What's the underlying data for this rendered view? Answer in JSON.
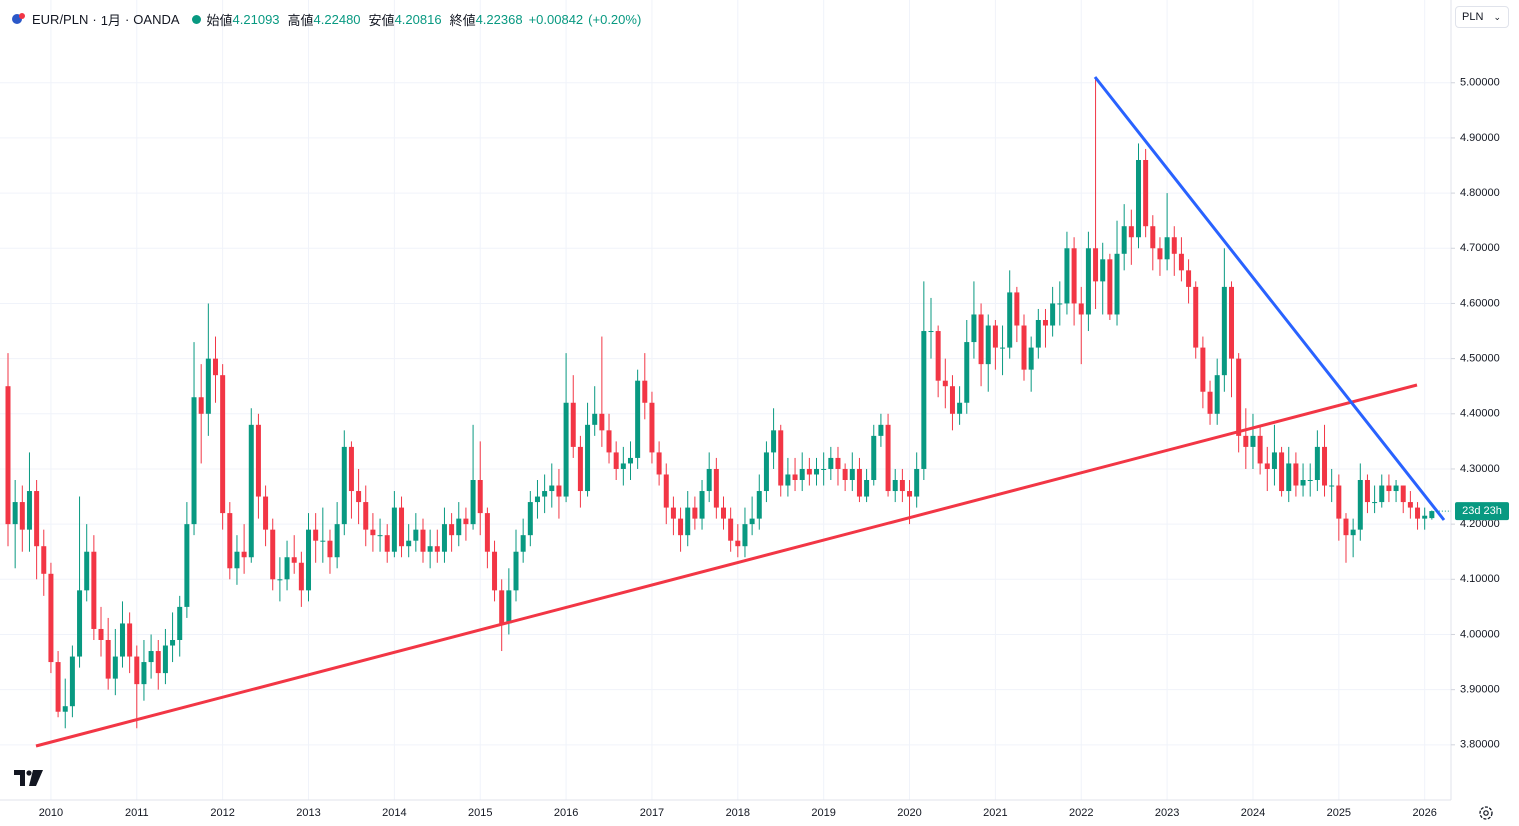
{
  "chart_data": {
    "type": "candlestick",
    "header": {
      "symbol": "EUR/PLN",
      "interval": "1月",
      "source": "OANDA",
      "open_label": "始値",
      "open": "4.21093",
      "high_label": "高値",
      "high": "4.22480",
      "low_label": "安値",
      "low": "4.20816",
      "close_label": "終値",
      "close": "4.22368",
      "change": "+0.00842",
      "change_percent": "(+0.20%)"
    },
    "currency": "PLN",
    "countdown": "23d 23h",
    "up_color": "#089981",
    "down_color": "#f23645",
    "grid": true,
    "ylim": [
      3.7,
      5.15
    ],
    "yticks": [
      {
        "value": 3.8,
        "label": "3.80000"
      },
      {
        "value": 3.9,
        "label": "3.90000"
      },
      {
        "value": 4.0,
        "label": "4.00000"
      },
      {
        "value": 4.1,
        "label": "4.10000"
      },
      {
        "value": 4.2,
        "label": "4.20000"
      },
      {
        "value": 4.3,
        "label": "4.30000"
      },
      {
        "value": 4.4,
        "label": "4.40000"
      },
      {
        "value": 4.5,
        "label": "4.50000"
      },
      {
        "value": 4.6,
        "label": "4.60000"
      },
      {
        "value": 4.7,
        "label": "4.70000"
      },
      {
        "value": 4.8,
        "label": "4.80000"
      },
      {
        "value": 4.9,
        "label": "4.90000"
      },
      {
        "value": 5.0,
        "label": "5.00000"
      }
    ],
    "categories": [
      null,
      null,
      null,
      null,
      null,
      null,
      "2010",
      null,
      null,
      null,
      null,
      null,
      null,
      null,
      null,
      null,
      null,
      null,
      "2011",
      null,
      null,
      null,
      null,
      null,
      null,
      null,
      null,
      null,
      null,
      null,
      "2012",
      null,
      null,
      null,
      null,
      null,
      null,
      null,
      null,
      null,
      null,
      null,
      "2013",
      null,
      null,
      null,
      null,
      null,
      null,
      null,
      null,
      null,
      null,
      null,
      "2014",
      null,
      null,
      null,
      null,
      null,
      null,
      null,
      null,
      null,
      null,
      null,
      "2015",
      null,
      null,
      null,
      null,
      null,
      null,
      null,
      null,
      null,
      null,
      null,
      "2016",
      null,
      null,
      null,
      null,
      null,
      null,
      null,
      null,
      null,
      null,
      null,
      "2017",
      null,
      null,
      null,
      null,
      null,
      null,
      null,
      null,
      null,
      null,
      null,
      "2018",
      null,
      null,
      null,
      null,
      null,
      null,
      null,
      null,
      null,
      null,
      null,
      "2019",
      null,
      null,
      null,
      null,
      null,
      null,
      null,
      null,
      null,
      null,
      null,
      "2020",
      null,
      null,
      null,
      null,
      null,
      null,
      null,
      null,
      null,
      null,
      null,
      "2021",
      null,
      null,
      null,
      null,
      null,
      null,
      null,
      null,
      null,
      null,
      null,
      "2022",
      null,
      null,
      null,
      null,
      null,
      null,
      null,
      null,
      null,
      null,
      null,
      "2023",
      null,
      null,
      null,
      null,
      null,
      null,
      null,
      null,
      null,
      null,
      null,
      "2024",
      null,
      null,
      null,
      null,
      null,
      null,
      null,
      null,
      null,
      null,
      null,
      "2025",
      null,
      null,
      null,
      null,
      null,
      null,
      null,
      null,
      null,
      null,
      null,
      "2026",
      null
    ],
    "series": [
      {
        "open": [
          4.45,
          4.2,
          4.24,
          4.19,
          4.26,
          4.16,
          4.11,
          3.95,
          3.86,
          3.87,
          3.96,
          4.08,
          4.15,
          4.01,
          3.99,
          3.92,
          3.96,
          4.02,
          3.96,
          3.91,
          3.95,
          3.97,
          3.93,
          3.98,
          3.99,
          4.05,
          4.2,
          4.43,
          4.4,
          4.5,
          4.47,
          4.22,
          4.12,
          4.15,
          4.14,
          4.38,
          4.25,
          4.19,
          4.1,
          4.1,
          4.14,
          4.13,
          4.08,
          4.19,
          4.17,
          4.17,
          4.14,
          4.2,
          4.34,
          4.26,
          4.24,
          4.19,
          4.18,
          4.18,
          4.15,
          4.23,
          4.16,
          4.17,
          4.19,
          4.15,
          4.16,
          4.15,
          4.2,
          4.18,
          4.21,
          4.2,
          4.28,
          4.22,
          4.15,
          4.08,
          4.02,
          4.08,
          4.15,
          4.18,
          4.24,
          4.25,
          4.26,
          4.27,
          4.25,
          4.42,
          4.34,
          4.26,
          4.38,
          4.4,
          4.37,
          4.33,
          4.3,
          4.31,
          4.32,
          4.46,
          4.42,
          4.33,
          4.29,
          4.23,
          4.21,
          4.18,
          4.23,
          4.21,
          4.26,
          4.3,
          4.23,
          4.21,
          4.17,
          4.16,
          4.2,
          4.21,
          4.26,
          4.33,
          4.37,
          4.27,
          4.29,
          4.28,
          4.3,
          4.29,
          4.3,
          4.3,
          4.32,
          4.3,
          4.28,
          4.3,
          4.25,
          4.28,
          4.36,
          4.38,
          4.26,
          4.28,
          4.26,
          4.25,
          4.3,
          4.55,
          4.55,
          4.46,
          4.45,
          4.4,
          4.42,
          4.53,
          4.58,
          4.49,
          4.56,
          4.52,
          4.52,
          4.62,
          4.56,
          4.48,
          4.52,
          4.57,
          4.56,
          4.6,
          4.6,
          4.7,
          4.6,
          4.58,
          4.7,
          4.64,
          4.68,
          4.58,
          4.69,
          4.74,
          4.72,
          4.86,
          4.74,
          4.7,
          4.68,
          4.72,
          4.69,
          4.66,
          4.63,
          4.52,
          4.44,
          4.4,
          4.47,
          4.63,
          4.5,
          4.36,
          4.34,
          4.36,
          4.31,
          4.3,
          4.33,
          4.26,
          4.31,
          4.27,
          4.28,
          4.28,
          4.34,
          4.27,
          4.27,
          4.21,
          4.18,
          4.19,
          4.28,
          4.24,
          4.24,
          4.27,
          4.26,
          4.27,
          4.24,
          4.23,
          4.21,
          4.21093
        ],
        "high": [
          4.51,
          4.28,
          4.27,
          4.33,
          4.28,
          4.19,
          4.13,
          3.97,
          3.92,
          3.98,
          4.25,
          4.2,
          4.18,
          4.05,
          4.03,
          4.01,
          4.06,
          4.04,
          3.98,
          3.99,
          4.0,
          3.99,
          4.01,
          4.04,
          4.07,
          4.24,
          4.53,
          4.49,
          4.6,
          4.54,
          4.49,
          4.24,
          4.18,
          4.2,
          4.41,
          4.4,
          4.27,
          4.21,
          4.14,
          4.17,
          4.18,
          4.15,
          4.22,
          4.22,
          4.23,
          4.19,
          4.24,
          4.37,
          4.35,
          4.3,
          4.27,
          4.22,
          4.21,
          4.2,
          4.26,
          4.25,
          4.2,
          4.22,
          4.21,
          4.19,
          4.19,
          4.23,
          4.22,
          4.24,
          4.23,
          4.38,
          4.35,
          4.23,
          4.17,
          4.1,
          4.12,
          4.19,
          4.21,
          4.26,
          4.28,
          4.29,
          4.31,
          4.3,
          4.51,
          4.47,
          4.36,
          4.42,
          4.45,
          4.54,
          4.4,
          4.35,
          4.34,
          4.35,
          4.48,
          4.51,
          4.44,
          4.35,
          4.31,
          4.25,
          4.23,
          4.26,
          4.25,
          4.28,
          4.33,
          4.32,
          4.25,
          4.23,
          4.2,
          4.23,
          4.25,
          4.29,
          4.35,
          4.41,
          4.38,
          4.32,
          4.32,
          4.33,
          4.32,
          4.32,
          4.33,
          4.34,
          4.34,
          4.31,
          4.33,
          4.32,
          4.3,
          4.38,
          4.4,
          4.4,
          4.3,
          4.3,
          4.28,
          4.33,
          4.64,
          4.61,
          4.56,
          4.5,
          4.47,
          4.45,
          4.57,
          4.64,
          4.6,
          4.58,
          4.57,
          4.56,
          4.66,
          4.63,
          4.58,
          4.54,
          4.59,
          4.59,
          4.63,
          4.64,
          4.73,
          4.72,
          4.63,
          4.73,
          5.01,
          4.71,
          4.69,
          4.75,
          4.78,
          4.77,
          4.89,
          4.88,
          4.76,
          4.72,
          4.8,
          4.74,
          4.72,
          4.68,
          4.64,
          4.54,
          4.46,
          4.5,
          4.7,
          4.64,
          4.51,
          4.41,
          4.4,
          4.38,
          4.34,
          4.38,
          4.34,
          4.34,
          4.33,
          4.31,
          4.31,
          4.37,
          4.38,
          4.3,
          4.29,
          4.22,
          4.21,
          4.31,
          4.29,
          4.27,
          4.29,
          4.29,
          4.28,
          4.27,
          4.26,
          4.24,
          4.23,
          4.2248
        ],
        "low": [
          4.16,
          4.12,
          4.15,
          4.15,
          4.1,
          4.07,
          3.93,
          3.85,
          3.83,
          3.85,
          3.94,
          4.06,
          3.99,
          3.96,
          3.9,
          3.89,
          3.94,
          3.93,
          3.83,
          3.88,
          3.92,
          3.9,
          3.91,
          3.95,
          3.96,
          4.03,
          4.18,
          4.31,
          4.36,
          4.42,
          4.19,
          4.1,
          4.09,
          4.11,
          4.13,
          4.21,
          4.16,
          4.08,
          4.06,
          4.08,
          4.11,
          4.05,
          4.06,
          4.13,
          4.13,
          4.11,
          4.12,
          4.18,
          4.21,
          4.2,
          4.16,
          4.15,
          4.15,
          4.13,
          4.14,
          4.14,
          4.14,
          4.15,
          4.13,
          4.12,
          4.13,
          4.13,
          4.15,
          4.16,
          4.17,
          4.19,
          4.18,
          4.12,
          4.06,
          3.97,
          4.0,
          4.06,
          4.13,
          4.16,
          4.21,
          4.22,
          4.23,
          4.21,
          4.24,
          4.32,
          4.23,
          4.25,
          4.36,
          4.34,
          4.31,
          4.28,
          4.27,
          4.28,
          4.3,
          4.39,
          4.31,
          4.27,
          4.2,
          4.18,
          4.15,
          4.16,
          4.19,
          4.19,
          4.24,
          4.21,
          4.19,
          4.15,
          4.14,
          4.14,
          4.18,
          4.19,
          4.24,
          4.3,
          4.25,
          4.25,
          4.26,
          4.26,
          4.27,
          4.27,
          4.27,
          4.28,
          4.27,
          4.26,
          4.26,
          4.24,
          4.24,
          4.27,
          4.34,
          4.25,
          4.24,
          4.24,
          4.2,
          4.23,
          4.28,
          4.5,
          4.43,
          4.41,
          4.37,
          4.38,
          4.4,
          4.5,
          4.45,
          4.44,
          4.48,
          4.47,
          4.5,
          4.53,
          4.46,
          4.44,
          4.5,
          4.52,
          4.54,
          4.56,
          4.58,
          4.56,
          4.49,
          4.55,
          4.59,
          4.58,
          4.57,
          4.56,
          4.66,
          4.67,
          4.7,
          4.72,
          4.66,
          4.65,
          4.66,
          4.65,
          4.64,
          4.6,
          4.5,
          4.41,
          4.38,
          4.38,
          4.44,
          4.43,
          4.33,
          4.3,
          4.3,
          4.29,
          4.26,
          4.27,
          4.25,
          4.24,
          4.25,
          4.25,
          4.25,
          4.26,
          4.25,
          4.24,
          4.17,
          4.13,
          4.14,
          4.17,
          4.22,
          4.22,
          4.23,
          4.24,
          4.24,
          4.22,
          4.21,
          4.19,
          4.19,
          4.20816
        ],
        "close": [
          4.2,
          4.24,
          4.19,
          4.26,
          4.16,
          4.11,
          3.95,
          3.86,
          3.87,
          3.96,
          4.08,
          4.15,
          4.01,
          3.99,
          3.92,
          3.96,
          4.02,
          3.96,
          3.91,
          3.95,
          3.97,
          3.93,
          3.98,
          3.99,
          4.05,
          4.2,
          4.43,
          4.4,
          4.5,
          4.47,
          4.22,
          4.12,
          4.15,
          4.14,
          4.38,
          4.25,
          4.19,
          4.1,
          4.1,
          4.14,
          4.13,
          4.08,
          4.19,
          4.17,
          4.17,
          4.14,
          4.2,
          4.34,
          4.26,
          4.24,
          4.19,
          4.18,
          4.18,
          4.15,
          4.23,
          4.16,
          4.17,
          4.19,
          4.15,
          4.16,
          4.15,
          4.2,
          4.18,
          4.21,
          4.2,
          4.28,
          4.22,
          4.15,
          4.08,
          4.02,
          4.08,
          4.15,
          4.18,
          4.24,
          4.25,
          4.26,
          4.27,
          4.25,
          4.42,
          4.34,
          4.26,
          4.38,
          4.4,
          4.37,
          4.33,
          4.3,
          4.31,
          4.32,
          4.46,
          4.42,
          4.33,
          4.29,
          4.23,
          4.21,
          4.18,
          4.23,
          4.21,
          4.26,
          4.3,
          4.23,
          4.21,
          4.17,
          4.16,
          4.2,
          4.21,
          4.26,
          4.33,
          4.37,
          4.27,
          4.29,
          4.28,
          4.3,
          4.29,
          4.3,
          4.3,
          4.32,
          4.3,
          4.28,
          4.3,
          4.25,
          4.28,
          4.36,
          4.38,
          4.26,
          4.28,
          4.26,
          4.25,
          4.3,
          4.55,
          4.55,
          4.46,
          4.45,
          4.4,
          4.42,
          4.53,
          4.58,
          4.49,
          4.56,
          4.52,
          4.52,
          4.62,
          4.56,
          4.48,
          4.52,
          4.57,
          4.56,
          4.6,
          4.6,
          4.7,
          4.6,
          4.58,
          4.7,
          4.64,
          4.68,
          4.58,
          4.69,
          4.74,
          4.72,
          4.86,
          4.74,
          4.7,
          4.68,
          4.72,
          4.69,
          4.66,
          4.63,
          4.52,
          4.44,
          4.4,
          4.47,
          4.63,
          4.5,
          4.36,
          4.34,
          4.36,
          4.31,
          4.3,
          4.33,
          4.26,
          4.31,
          4.27,
          4.28,
          4.28,
          4.34,
          4.27,
          4.27,
          4.21,
          4.18,
          4.19,
          4.28,
          4.24,
          4.24,
          4.27,
          4.26,
          4.27,
          4.24,
          4.23,
          4.21,
          4.21526,
          4.22368
        ]
      }
    ]
  }
}
